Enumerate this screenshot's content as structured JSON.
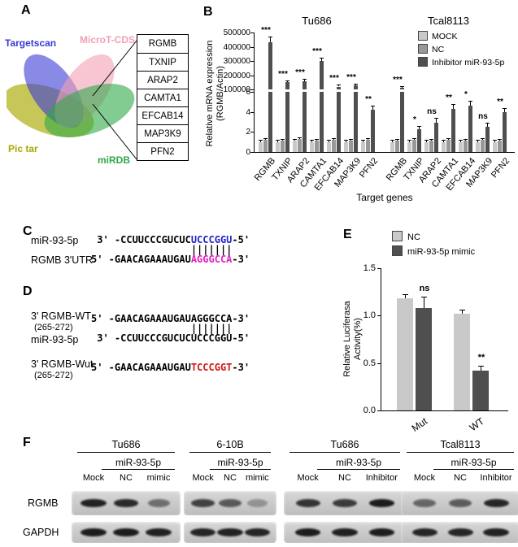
{
  "panels": {
    "A": {
      "label": "A",
      "venn_sets": [
        {
          "name": "Targetscan",
          "color": "#3a3ad6"
        },
        {
          "name": "MicroT-CDS",
          "color": "#f2a0b4"
        },
        {
          "name": "Pic tar",
          "color": "#a8a800"
        },
        {
          "name": "miRDB",
          "color": "#2fa848"
        }
      ],
      "genes": [
        "RGMB",
        "TXNIP",
        "ARAP2",
        "CAMTA1",
        "EFCAB14",
        "MAP3K9",
        "PFN2"
      ]
    },
    "B": {
      "label": "B"
    },
    "C": {
      "label": "C",
      "rows": [
        {
          "name": "miR-93-5p",
          "prefix": " 3' -CCUUCCCGUCUC",
          "highlight": "UCCCGGU",
          "suffix": "-5'",
          "highlight_color": "#2222cc"
        },
        {
          "pair": "                 |||||||"
        },
        {
          "name": "RGMB 3'UTR",
          "prefix": "5' -GAACAGAAAUGAU",
          "highlight": "AGGGCCA",
          "suffix": "-3'",
          "highlight_color": "#e020c0"
        }
      ]
    },
    "D": {
      "label": "D",
      "rows": [
        {
          "name": "3' RGMB-WT",
          "sub": "(265-272)",
          "prefix": "5' -GAACAGAAAUGAU",
          "highlight": "AGGGCCA",
          "suffix": "-3'",
          "highlight_color": "#000000"
        },
        {
          "pair": "                 |||||||"
        },
        {
          "name": "miR-93-5p",
          "prefix": " 3' -CCUUCCCGUCUC",
          "highlight": "UCCCGGU",
          "suffix": "-5'",
          "highlight_color": "#000000"
        },
        {
          "name": "3' RGMB-Wut",
          "sub": "(265-272)",
          "prefix": "5' -GAACAGAAAUGAU",
          "highlight": "TCCCGGT",
          "suffix": "-3'",
          "highlight_color": "#d01818"
        }
      ]
    },
    "E": {
      "label": "E"
    },
    "F": {
      "label": "F",
      "row_labels": [
        "RGMB",
        "GAPDH"
      ],
      "groups": [
        {
          "cell_line": "Tu686",
          "treatment": "miR-93-5p",
          "lanes": [
            "Mock",
            "NC",
            "mimic"
          ],
          "rgmb_bands": [
            0.92,
            0.88,
            0.5
          ],
          "gapdh_bands": [
            0.95,
            0.95,
            0.92
          ]
        },
        {
          "cell_line": "6-10B",
          "treatment": "miR-93-5p",
          "lanes": [
            "Mock",
            "NC",
            "mimic"
          ],
          "rgmb_bands": [
            0.75,
            0.62,
            0.3
          ],
          "gapdh_bands": [
            0.9,
            0.92,
            0.9
          ]
        },
        {
          "cell_line": "Tu686",
          "treatment": "miR-93-5p",
          "lanes": [
            "Mock",
            "NC",
            "Inhibitor"
          ],
          "rgmb_bands": [
            0.82,
            0.78,
            0.95
          ],
          "gapdh_bands": [
            0.95,
            0.93,
            0.95
          ]
        },
        {
          "cell_line": "Tcal8113",
          "treatment": "miR-93-5p",
          "lanes": [
            "Mock",
            "NC",
            "Inhibitor"
          ],
          "rgmb_bands": [
            0.55,
            0.6,
            0.9
          ],
          "gapdh_bands": [
            0.9,
            0.9,
            0.92
          ]
        }
      ]
    }
  },
  "chart_data": [
    {
      "type": "bar",
      "panel": "B",
      "ylabel_line1": "Relative mRNA expression",
      "ylabel_line2": "(RGMB/Actin)",
      "xlabel": "Target genes",
      "legend": [
        "MOCK",
        "NC",
        "Inhibitor miR-93-5p"
      ],
      "series_colors": [
        "#c9c9c9",
        "#989898",
        "#4f4f4f"
      ],
      "upper_ticks": [
        "500000",
        "400000",
        "300000",
        "200000",
        "100000"
      ],
      "upper_range": [
        100000,
        500000
      ],
      "lower_ticks": [
        "6",
        "4",
        "2",
        "0"
      ],
      "lower_range": [
        0,
        6
      ],
      "control_err": 0.2,
      "cell_lines": [
        {
          "name": "Tu686",
          "categories": [
            "RGMB",
            "TXNIP",
            "ARAP2",
            "CAMTA1",
            "EFCAB14",
            "MAP3K9",
            "PFN2"
          ],
          "mock": [
            1.0,
            1.0,
            1.1,
            1.0,
            1.0,
            1.0,
            1.0
          ],
          "nc": [
            1.2,
            1.1,
            1.3,
            1.1,
            1.2,
            1.1,
            1.2
          ],
          "inhibitor": [
            430000,
            150000,
            160000,
            300000,
            120000,
            130000,
            4.2
          ],
          "inhibitor_err": [
            40000,
            15000,
            15000,
            25000,
            12000,
            12000,
            0.4
          ],
          "significance": [
            "***",
            "***",
            "***",
            "***",
            "***",
            "***",
            "**"
          ]
        },
        {
          "name": "Tcal8113",
          "categories": [
            "RGMB",
            "TXNIP",
            "ARAP2",
            "CAMTA1",
            "EFCAB14",
            "MAP3K9",
            "PFN2"
          ],
          "mock": [
            1.0,
            1.0,
            1.0,
            1.0,
            1.0,
            1.0,
            1.0
          ],
          "nc": [
            1.1,
            1.2,
            1.1,
            1.2,
            1.1,
            1.2,
            1.1
          ],
          "inhibitor": [
            110000,
            2.3,
            2.9,
            4.3,
            4.6,
            2.5,
            4.0
          ],
          "inhibitor_err": [
            12000,
            0.3,
            0.5,
            0.5,
            0.5,
            0.4,
            0.4
          ],
          "significance": [
            "***",
            "*",
            "ns",
            "**",
            "*",
            "ns",
            "**"
          ]
        }
      ]
    },
    {
      "type": "bar",
      "panel": "E",
      "ylabel_line1": "Relative Luciferasa",
      "ylabel_line2": "Activity(%)",
      "categories": [
        "Mut",
        "WT"
      ],
      "yticks": [
        "1.5",
        "1.0",
        "0.5",
        "0.0"
      ],
      "ylim": [
        0,
        1.5
      ],
      "series": [
        {
          "name": "NC",
          "color": "#c9c9c9",
          "values": [
            1.18,
            1.02
          ],
          "errors": [
            0.05,
            0.04
          ]
        },
        {
          "name": "miR-93-5p mimic",
          "color": "#4f4f4f",
          "values": [
            1.08,
            0.42
          ],
          "errors": [
            0.12,
            0.05
          ]
        }
      ],
      "annotations": [
        "ns",
        "**"
      ]
    }
  ]
}
